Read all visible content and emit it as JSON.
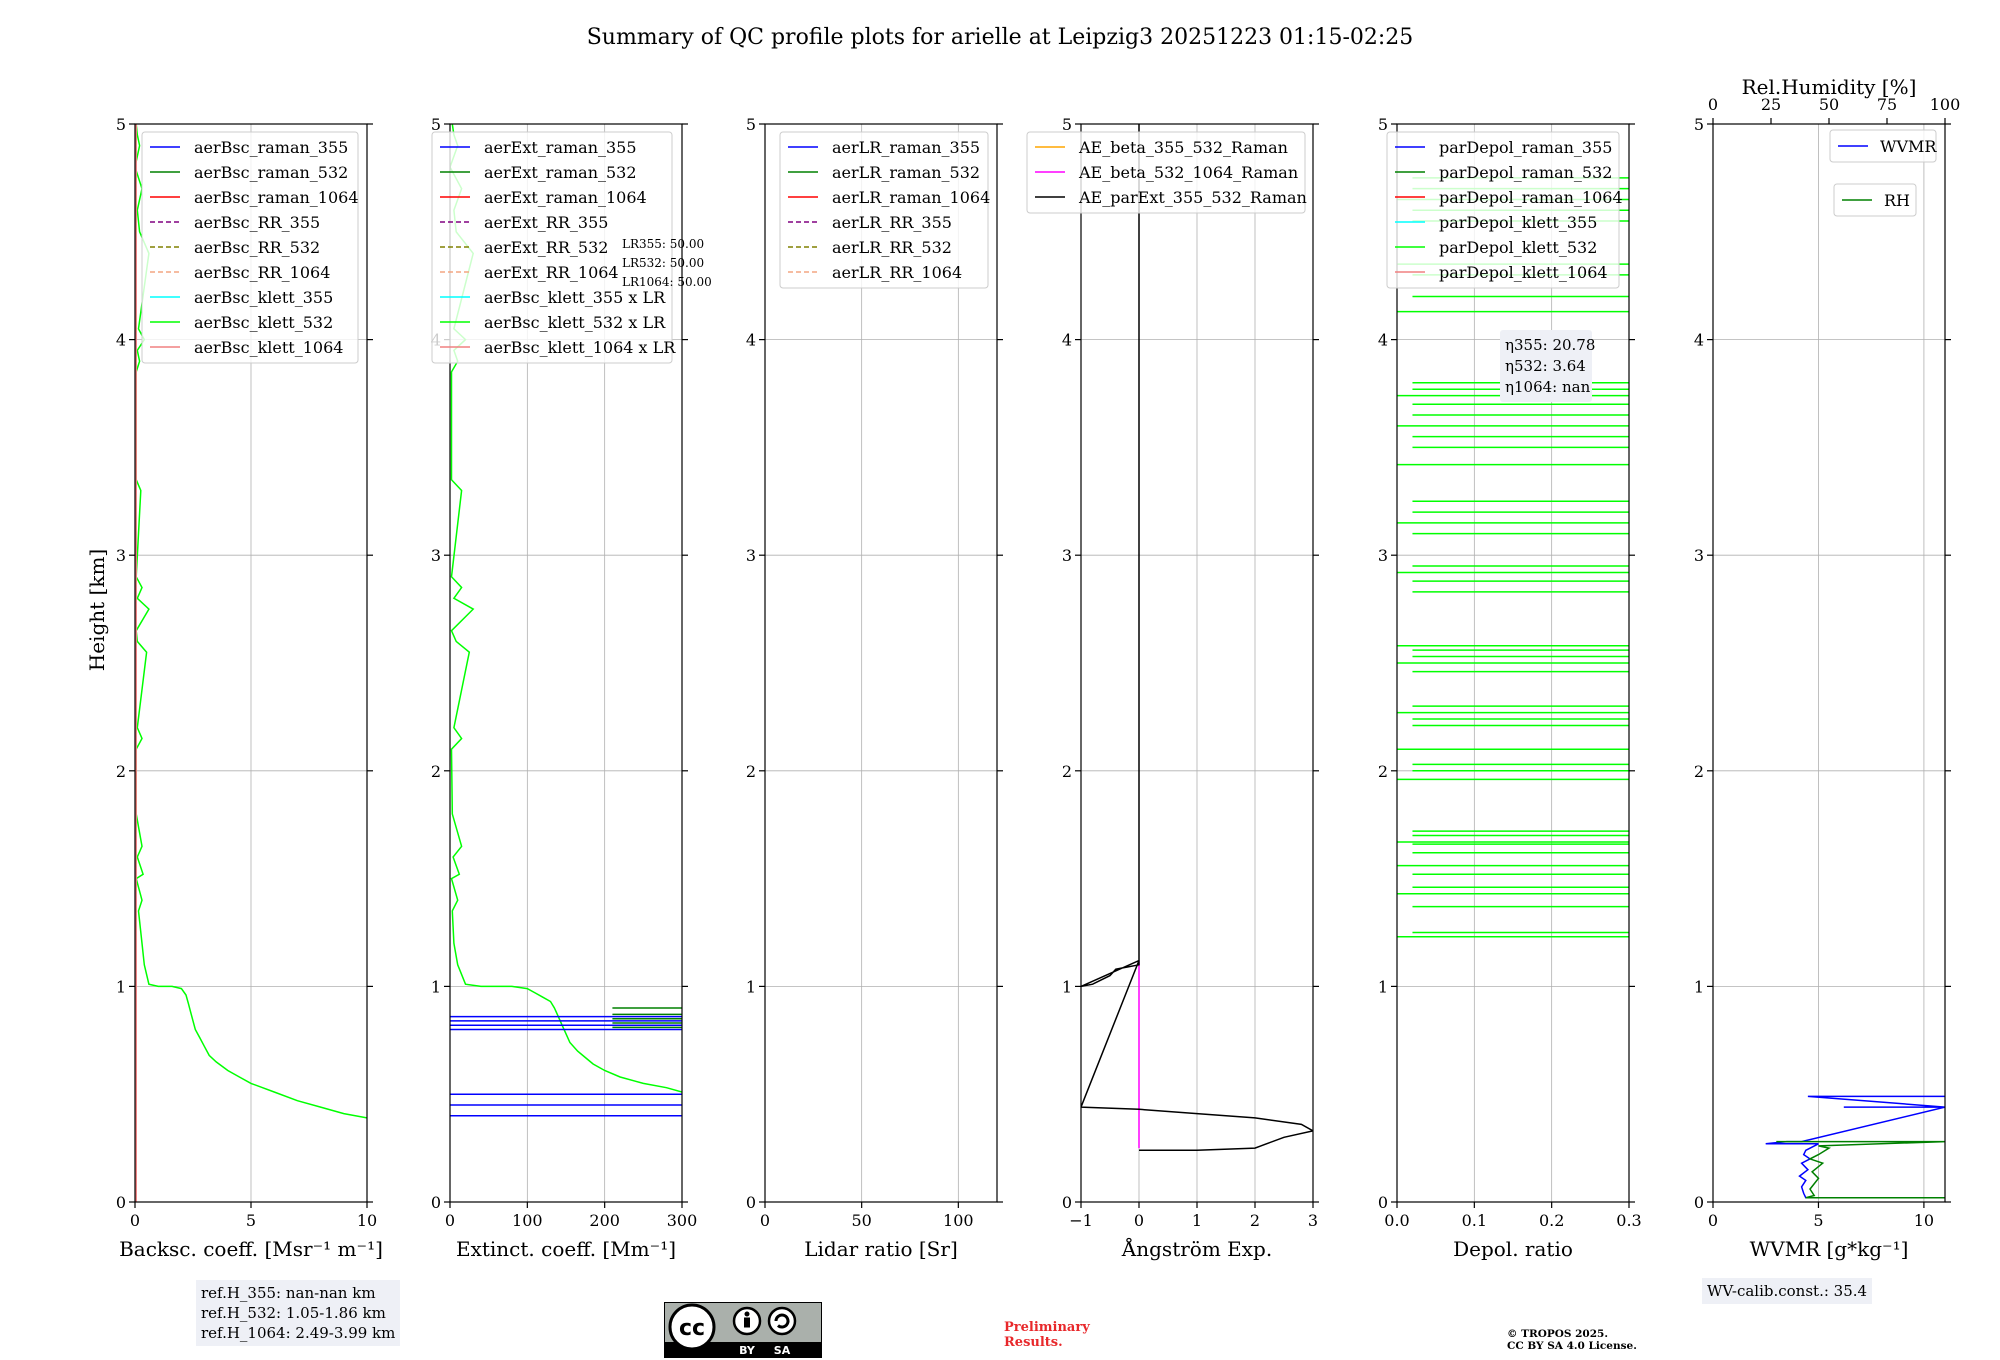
{
  "title": "Summary of QC profile plots for arielle at Leipzig3 20251223 01:15-02:25",
  "ylabel": "Height [km]",
  "chart_data": [
    {
      "id": "bsc",
      "type": "line",
      "xlabel": "Backsc. coeff. [Msr$^{-1}$ m$^{-1}$]",
      "xlabel_text": "Backsc. coeff. [Msr⁻¹ m⁻¹]",
      "xlim": [
        0,
        10
      ],
      "ylim": [
        0,
        5
      ],
      "xticks": [
        0,
        5,
        10
      ],
      "yticks": [
        0,
        1,
        2,
        3,
        4,
        5
      ],
      "legend": [
        "aerBsc_raman_355",
        "aerBsc_raman_532",
        "aerBsc_raman_1064",
        "aerBsc_RR_355",
        "aerBsc_RR_532",
        "aerBsc_RR_1064",
        "aerBsc_klett_355",
        "aerBsc_klett_532",
        "aerBsc_klett_1064"
      ],
      "series": [
        {
          "name": "aerBsc_klett_532",
          "color": "#00ff00",
          "x": [
            10,
            9,
            8,
            7,
            6,
            5.5,
            5,
            4.5,
            4,
            3.5,
            3.2,
            3,
            2.8,
            2.6,
            2.5,
            2.4,
            2.3,
            2.2,
            2.0,
            1.6,
            1.0,
            0.6,
            0.4,
            0.3,
            0.15,
            0.3,
            0.05,
            0.35,
            0.1,
            0.3,
            0.05,
            0.05,
            0.3,
            0.1,
            0.5,
            0.1,
            0.05,
            0.6,
            0.1,
            0.3,
            0.05,
            0.25,
            0.05,
            0.05,
            0.2,
            0.1,
            0.4,
            0.15,
            0.6,
            0.2,
            0.1,
            0.3,
            0.0,
            0.2,
            0.1,
            0.05
          ],
          "y": [
            0.39,
            0.41,
            0.44,
            0.47,
            0.51,
            0.53,
            0.55,
            0.58,
            0.61,
            0.65,
            0.68,
            0.72,
            0.76,
            0.8,
            0.84,
            0.88,
            0.92,
            0.96,
            0.99,
            1.0,
            1.0,
            1.01,
            1.1,
            1.2,
            1.35,
            1.4,
            1.5,
            1.52,
            1.6,
            1.65,
            1.8,
            2.1,
            2.15,
            2.2,
            2.55,
            2.6,
            2.65,
            2.75,
            2.8,
            2.85,
            2.9,
            3.3,
            3.35,
            3.85,
            3.9,
            3.95,
            4.0,
            4.05,
            4.4,
            4.5,
            4.6,
            4.7,
            4.8,
            4.9,
            4.95,
            5.0
          ]
        },
        {
          "name": "aerBsc_klett_1064",
          "color": "#f08080",
          "x": [
            0.05,
            0.05
          ],
          "y": [
            0.0,
            5.0
          ]
        }
      ]
    },
    {
      "id": "ext",
      "type": "line",
      "xlabel_text": "Extinct. coeff. [Mm⁻¹]",
      "xlim": [
        0,
        300
      ],
      "ylim": [
        0,
        5
      ],
      "xticks": [
        0,
        100,
        200,
        300
      ],
      "yticks": [
        0,
        1,
        2,
        3,
        4,
        5
      ],
      "legend": [
        "aerExt_raman_355",
        "aerExt_raman_532",
        "aerExt_raman_1064",
        "aerExt_RR_355",
        "aerExt_RR_532",
        "aerExt_RR_1064",
        "aerBsc_klett_355 x LR",
        "aerBsc_klett_532 x LR",
        "aerBsc_klett_1064 x LR"
      ],
      "lr_note": [
        "LR355: 50.00",
        "LR532: 50.00",
        "LR1064: 50.00"
      ],
      "series": [
        {
          "name": "aerBsc_klett_532 x LR",
          "color": "#00ff00",
          "x": [
            300,
            280,
            250,
            220,
            200,
            185,
            175,
            165,
            155,
            150,
            145,
            140,
            135,
            130,
            120,
            110,
            100,
            80,
            60,
            40,
            20,
            10,
            5,
            3,
            10,
            2,
            12,
            4,
            15,
            3,
            2,
            15,
            5,
            25,
            8,
            2,
            30,
            5,
            15,
            2,
            15,
            2,
            2,
            10,
            5,
            20,
            5,
            30,
            8,
            5,
            15,
            0,
            10,
            5,
            3
          ],
          "y": [
            0.51,
            0.53,
            0.55,
            0.58,
            0.61,
            0.64,
            0.67,
            0.7,
            0.74,
            0.78,
            0.82,
            0.86,
            0.9,
            0.93,
            0.95,
            0.97,
            0.99,
            1.0,
            1.0,
            1.0,
            1.01,
            1.1,
            1.2,
            1.35,
            1.4,
            1.5,
            1.52,
            1.6,
            1.65,
            1.8,
            2.1,
            2.15,
            2.2,
            2.55,
            2.6,
            2.65,
            2.75,
            2.8,
            2.85,
            2.9,
            3.3,
            3.35,
            3.85,
            3.9,
            3.95,
            4.0,
            4.05,
            4.4,
            4.5,
            4.6,
            4.7,
            4.8,
            4.9,
            4.95,
            5.0
          ]
        }
      ],
      "raman_355_levels": [
        0.4,
        0.45,
        0.5,
        0.8,
        0.82,
        0.84,
        0.86
      ],
      "raman_532_levels": [
        0.81,
        0.83,
        0.85,
        0.87,
        0.9
      ]
    },
    {
      "id": "lr",
      "type": "line",
      "xlabel_text": "Lidar ratio [Sr]",
      "xlim": [
        0,
        120
      ],
      "ylim": [
        0,
        5
      ],
      "xticks": [
        0,
        50,
        100
      ],
      "yticks": [
        0,
        1,
        2,
        3,
        4,
        5
      ],
      "legend": [
        "aerLR_raman_355",
        "aerLR_raman_532",
        "aerLR_raman_1064",
        "aerLR_RR_355",
        "aerLR_RR_532",
        "aerLR_RR_1064"
      ],
      "series": []
    },
    {
      "id": "ae",
      "type": "line",
      "xlabel_text": "Ångström Exp.",
      "xlim": [
        -1,
        3
      ],
      "ylim": [
        0,
        5
      ],
      "xticks": [
        -1,
        0,
        1,
        2,
        3
      ],
      "xtick_labels": [
        "−1",
        "0",
        "1",
        "2",
        "3"
      ],
      "yticks": [
        0,
        1,
        2,
        3,
        4,
        5
      ],
      "legend": [
        "AE_beta_355_532_Raman",
        "AE_beta_532_1064_Raman",
        "AE_parExt_355_532_Raman"
      ],
      "series": [
        {
          "name": "AE_beta_532_1064_Raman",
          "color": "#ff00ff",
          "x": [
            0,
            0
          ],
          "y": [
            0.25,
            1.12
          ]
        },
        {
          "name": "AE_parExt_355_532_Raman",
          "color": "#000000",
          "x": [
            0,
            0.5,
            1,
            2,
            2.1,
            2.5,
            3,
            2.8,
            2.0,
            1.0,
            0.0,
            -1,
            0.0,
            0.0,
            -0.2,
            -0.4,
            -0.5,
            -0.8,
            -1.0,
            0,
            0
          ],
          "y": [
            0.24,
            0.24,
            0.24,
            0.25,
            0.26,
            0.3,
            0.33,
            0.36,
            0.39,
            0.41,
            0.43,
            0.44,
            1.12,
            1.1,
            1.09,
            1.08,
            1.05,
            1.01,
            1.0,
            1.12,
            5.0
          ]
        }
      ]
    },
    {
      "id": "depol",
      "type": "line",
      "xlabel_text": "Depol. ratio",
      "xlim": [
        0,
        0.3
      ],
      "ylim": [
        0,
        5
      ],
      "xticks": [
        0,
        0.1,
        0.2,
        0.3
      ],
      "xtick_labels": [
        "0.0",
        "0.1",
        "0.2",
        "0.3"
      ],
      "yticks": [
        0,
        1,
        2,
        3,
        4,
        5
      ],
      "legend": [
        "parDepol_raman_355",
        "parDepol_raman_532",
        "parDepol_raman_1064",
        "parDepol_klett_355",
        "parDepol_klett_532",
        "parDepol_klett_1064"
      ],
      "eta": [
        "η355: 20.78",
        "η532: 3.64",
        "η1064: nan"
      ],
      "klett_532_levels": [
        1.23,
        1.25,
        1.37,
        1.43,
        1.46,
        1.52,
        1.56,
        1.62,
        1.66,
        1.67,
        1.7,
        1.72,
        1.96,
        2.0,
        2.03,
        2.1,
        2.21,
        2.24,
        2.27,
        2.3,
        2.46,
        2.5,
        2.53,
        2.56,
        2.58,
        2.83,
        2.88,
        2.92,
        2.95,
        3.1,
        3.15,
        3.2,
        3.25,
        3.42,
        3.5,
        3.55,
        3.6,
        3.65,
        3.7,
        3.74,
        3.77,
        3.8,
        4.13,
        4.2,
        4.3,
        4.35,
        4.55,
        4.6,
        4.65,
        4.7,
        4.75
      ]
    },
    {
      "id": "wvmr",
      "type": "line",
      "xlabel_text": "WVMR [g*kg⁻¹]",
      "xlim": [
        0,
        11
      ],
      "ylim": [
        0,
        5
      ],
      "xticks": [
        0,
        5,
        10
      ],
      "yticks": [
        0,
        1,
        2,
        3,
        4,
        5
      ],
      "top_axis": {
        "label": "Rel.Humidity [%]",
        "lim": [
          0,
          100
        ],
        "ticks": [
          0,
          25,
          50,
          75,
          100
        ]
      },
      "legend_wvmr": "WVMR",
      "legend_rh": "RH",
      "series": [
        {
          "name": "WVMR",
          "color": "#0000ff",
          "x": [
            11,
            4.5,
            11,
            6.2,
            11,
            4.2,
            3.5,
            2.5,
            5.0,
            4.4,
            4.3,
            4.6,
            4.2,
            4.5,
            4.1,
            4.4,
            4.2,
            4.3,
            4.4,
            11
          ],
          "y": [
            0.49,
            0.49,
            0.44,
            0.44,
            0.44,
            0.28,
            0.28,
            0.27,
            0.27,
            0.24,
            0.22,
            0.2,
            0.18,
            0.15,
            0.12,
            0.1,
            0.07,
            0.04,
            0.02,
            0.02
          ]
        },
        {
          "name": "RH",
          "color": "#008000",
          "x": [
            11,
            3,
            11,
            5,
            5.5,
            5.0,
            4.6,
            5.2,
            4.7,
            5.0,
            4.6,
            4.8,
            4.4,
            11
          ],
          "y": [
            0.28,
            0.28,
            0.28,
            0.26,
            0.25,
            0.22,
            0.2,
            0.18,
            0.14,
            0.11,
            0.06,
            0.03,
            0.02,
            0.02
          ]
        }
      ],
      "calib": "WV-calib.const.: 35.4"
    }
  ],
  "refH": [
    "ref.H_355: nan-nan km",
    "ref.H_532: 1.05-1.86 km",
    "ref.H_1064: 2.49-3.99 km"
  ],
  "license": {
    "by": "BY",
    "sa": "SA",
    "cc": "cc"
  },
  "preliminary": [
    "Preliminary",
    "Results."
  ],
  "copyright": [
    "© TROPOS 2025.",
    "CC BY SA 4.0 License."
  ],
  "colors": {
    "raman_355": "#0000ff",
    "raman_532": "#008000",
    "raman_1064": "#ff0000",
    "rr_355": "#800080",
    "rr_532": "#808000",
    "rr_1064": "#f4a582",
    "klett_355": "#00ffff",
    "klett_532": "#00ff00",
    "klett_1064": "#f08080",
    "ae_beta_355_532": "#ffa500",
    "ae_beta_532_1064": "#ff00ff",
    "ae_parext": "#000000"
  }
}
